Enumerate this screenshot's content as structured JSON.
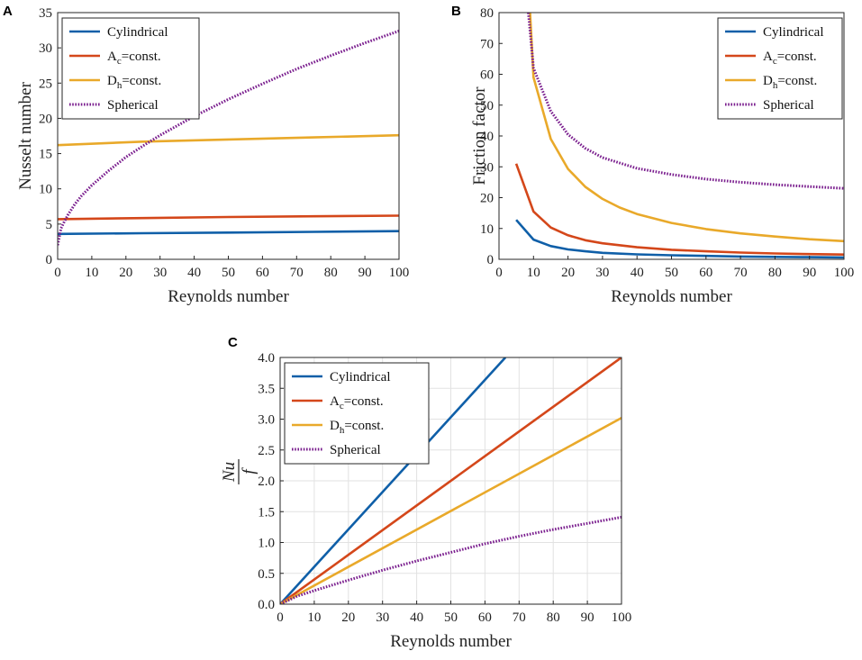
{
  "figure": {
    "panel_labels": [
      "A",
      "B",
      "C"
    ]
  },
  "legend": {
    "entries": [
      {
        "key": "cyl",
        "text": "Cylindrical",
        "color": "#0f5fa8",
        "dash": "solid"
      },
      {
        "key": "ac",
        "text": "A",
        "sub": "c",
        "suffix": "=const.",
        "color": "#d4471a",
        "dash": "solid"
      },
      {
        "key": "dh",
        "text": "D",
        "sub": "h",
        "suffix": "=const.",
        "color": "#e9a92a",
        "dash": "solid"
      },
      {
        "key": "sph",
        "text": "Spherical",
        "color": "#7a1e8e",
        "dash": "dotted"
      }
    ]
  },
  "chart_data": [
    {
      "id": "A",
      "type": "line",
      "title": "",
      "xlabel": "Reynolds number",
      "ylabel": "Nusselt number",
      "xlim": [
        0,
        100
      ],
      "ylim": [
        0,
        35
      ],
      "xticks": [
        0,
        10,
        20,
        30,
        40,
        50,
        60,
        70,
        80,
        90,
        100
      ],
      "yticks": [
        0,
        5,
        10,
        15,
        20,
        25,
        30,
        35
      ],
      "ytick_labels": [
        "0",
        "5",
        "10",
        "15",
        "20",
        "25",
        "30",
        "35"
      ],
      "grid": false,
      "legend_position": "top-left",
      "series": [
        {
          "key": "cyl",
          "name": "Cylindrical",
          "x": [
            0,
            25,
            50,
            75,
            100
          ],
          "y": [
            3.6,
            3.7,
            3.8,
            3.9,
            4.0
          ]
        },
        {
          "key": "ac",
          "name": "Ac=const.",
          "x": [
            0,
            25,
            50,
            75,
            100
          ],
          "y": [
            5.7,
            5.85,
            6.0,
            6.1,
            6.2
          ]
        },
        {
          "key": "dh",
          "name": "Dh=const.",
          "x": [
            0,
            25,
            50,
            75,
            100
          ],
          "y": [
            16.2,
            16.7,
            17.0,
            17.3,
            17.6
          ]
        },
        {
          "key": "sph",
          "name": "Spherical",
          "x": [
            0,
            1,
            2,
            3,
            5,
            7,
            10,
            15,
            20,
            25,
            30,
            40,
            50,
            60,
            70,
            80,
            90,
            100
          ],
          "y": [
            2.0,
            4.4,
            5.4,
            6.3,
            7.8,
            9.0,
            10.5,
            12.6,
            14.5,
            16.1,
            17.6,
            20.3,
            22.7,
            24.9,
            27.0,
            28.9,
            30.7,
            32.4
          ]
        }
      ]
    },
    {
      "id": "B",
      "type": "line",
      "title": "",
      "xlabel": "Reynolds number",
      "ylabel": "Friction factor",
      "xlim": [
        0,
        100
      ],
      "ylim": [
        0,
        80
      ],
      "xticks": [
        0,
        10,
        20,
        30,
        40,
        50,
        60,
        70,
        80,
        90,
        100
      ],
      "yticks": [
        0,
        10,
        20,
        30,
        40,
        50,
        60,
        70,
        80
      ],
      "ytick_labels": [
        "0",
        "10",
        "20",
        "30",
        "40",
        "50",
        "60",
        "70",
        "80"
      ],
      "grid": false,
      "legend_position": "top-right",
      "series": [
        {
          "key": "cyl",
          "name": "Cylindrical",
          "x": [
            5,
            10,
            15,
            20,
            25,
            30,
            40,
            50,
            60,
            70,
            80,
            90,
            100
          ],
          "y": [
            12.8,
            6.4,
            4.3,
            3.2,
            2.6,
            2.1,
            1.6,
            1.3,
            1.1,
            0.9,
            0.8,
            0.7,
            0.6
          ]
        },
        {
          "key": "ac",
          "name": "Ac=const.",
          "x": [
            5,
            10,
            15,
            20,
            25,
            30,
            40,
            50,
            60,
            70,
            80,
            90,
            100
          ],
          "y": [
            31.0,
            15.5,
            10.3,
            7.8,
            6.2,
            5.2,
            3.9,
            3.1,
            2.6,
            2.2,
            1.9,
            1.7,
            1.55
          ]
        },
        {
          "key": "dh",
          "name": "Dh=const.",
          "x": [
            9,
            10,
            15,
            20,
            25,
            30,
            35,
            40,
            50,
            60,
            70,
            80,
            90,
            100
          ],
          "y": [
            80,
            59,
            39,
            29.3,
            23.5,
            19.6,
            16.8,
            14.7,
            11.8,
            9.8,
            8.4,
            7.4,
            6.5,
            5.9
          ]
        },
        {
          "key": "sph",
          "name": "Spherical",
          "x": [
            8.5,
            10,
            15,
            20,
            25,
            30,
            40,
            50,
            60,
            70,
            80,
            90,
            100
          ],
          "y": [
            80,
            62,
            48,
            40.5,
            36,
            33,
            29.5,
            27.5,
            26,
            25,
            24.2,
            23.6,
            23.0
          ]
        }
      ]
    },
    {
      "id": "C",
      "type": "line",
      "title": "",
      "xlabel": "Reynolds number",
      "ylabel": "Nu/f",
      "ylabel_num": "Nu",
      "ylabel_den": "f",
      "xlim": [
        0,
        100
      ],
      "ylim": [
        0,
        4.0
      ],
      "xticks": [
        0,
        10,
        20,
        30,
        40,
        50,
        60,
        70,
        80,
        90,
        100
      ],
      "yticks": [
        0,
        0.5,
        1.0,
        1.5,
        2.0,
        2.5,
        3.0,
        3.5,
        4.0
      ],
      "ytick_labels": [
        "0.0",
        "0.5",
        "1.0",
        "1.5",
        "2.0",
        "2.5",
        "3.0",
        "3.5",
        "4.0"
      ],
      "grid": true,
      "legend_position": "top-left",
      "series": [
        {
          "key": "cyl",
          "name": "Cylindrical",
          "x": [
            0,
            66
          ],
          "y": [
            0,
            4.0
          ]
        },
        {
          "key": "ac",
          "name": "Ac=const.",
          "x": [
            0,
            100
          ],
          "y": [
            0,
            4.0
          ]
        },
        {
          "key": "dh",
          "name": "Dh=const.",
          "x": [
            0,
            100
          ],
          "y": [
            0,
            3.02
          ]
        },
        {
          "key": "sph",
          "name": "Spherical",
          "x": [
            0,
            5,
            10,
            20,
            30,
            40,
            50,
            60,
            70,
            80,
            90,
            100
          ],
          "y": [
            0,
            0.13,
            0.22,
            0.39,
            0.55,
            0.7,
            0.84,
            0.98,
            1.1,
            1.21,
            1.31,
            1.41
          ]
        }
      ]
    }
  ]
}
